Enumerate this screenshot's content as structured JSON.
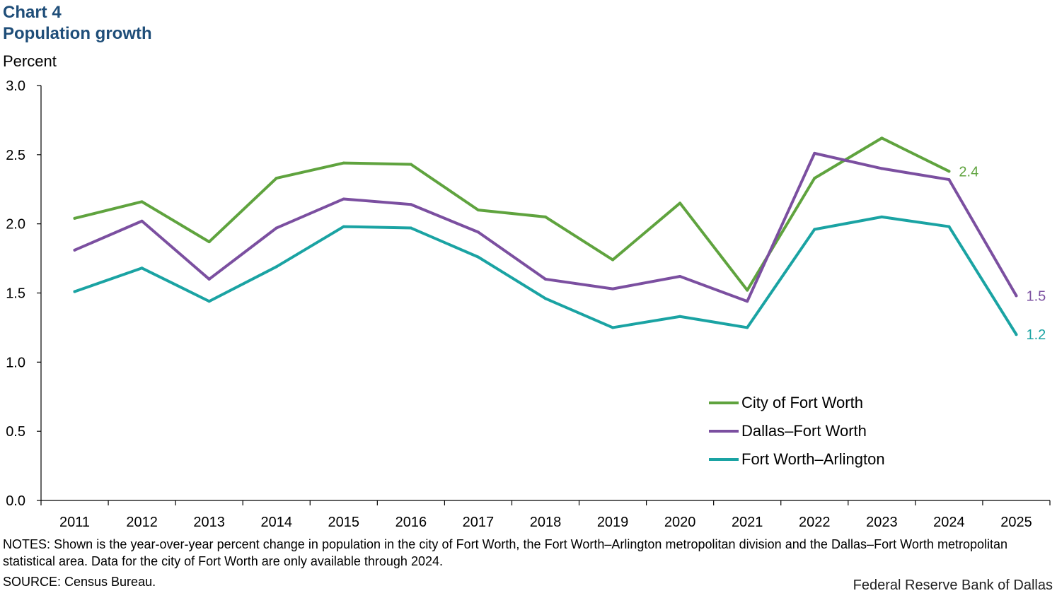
{
  "header": {
    "chart_number": "Chart 4",
    "title": "Population growth",
    "y_unit": "Percent"
  },
  "footer": {
    "notes": "NOTES: Shown is the year-over-year percent change in population in the city of Fort Worth, the Fort Worth–Arlington metropolitan division and the Dallas–Fort Worth metropolitan statistical area. Data for the city of Fort Worth are only available through 2024.",
    "source": "SOURCE: Census Bureau.",
    "credit": "Federal Reserve Bank of Dallas"
  },
  "chart_data": {
    "type": "line",
    "title": "Population growth",
    "ylabel": "Percent",
    "xlabel": "",
    "ylim": [
      0.0,
      3.0
    ],
    "yticks": [
      "0.0",
      "0.5",
      "1.0",
      "1.5",
      "2.0",
      "2.5",
      "3.0"
    ],
    "categories": [
      "2011",
      "2012",
      "2013",
      "2014",
      "2015",
      "2016",
      "2017",
      "2018",
      "2019",
      "2020",
      "2021",
      "2022",
      "2023",
      "2024",
      "2025"
    ],
    "grid": false,
    "legend_position": "lower-right",
    "series": [
      {
        "name": "City of Fort Worth",
        "color": "#5fa33e",
        "values": [
          2.04,
          2.16,
          1.87,
          2.33,
          2.44,
          2.43,
          2.1,
          2.05,
          1.74,
          2.15,
          1.52,
          2.33,
          2.62,
          2.38,
          null
        ],
        "end_label": "2.4"
      },
      {
        "name": "Dallas–Fort Worth",
        "color": "#7b4fa0",
        "values": [
          1.81,
          2.02,
          1.6,
          1.97,
          2.18,
          2.14,
          1.94,
          1.6,
          1.53,
          1.62,
          1.44,
          2.51,
          2.4,
          2.32,
          1.48
        ],
        "end_label": "1.5"
      },
      {
        "name": "Fort Worth–Arlington",
        "color": "#1aa3a3",
        "values": [
          1.51,
          1.68,
          1.44,
          1.69,
          1.98,
          1.97,
          1.76,
          1.46,
          1.25,
          1.33,
          1.25,
          1.96,
          2.05,
          1.98,
          1.2
        ],
        "end_label": "1.2"
      }
    ]
  }
}
